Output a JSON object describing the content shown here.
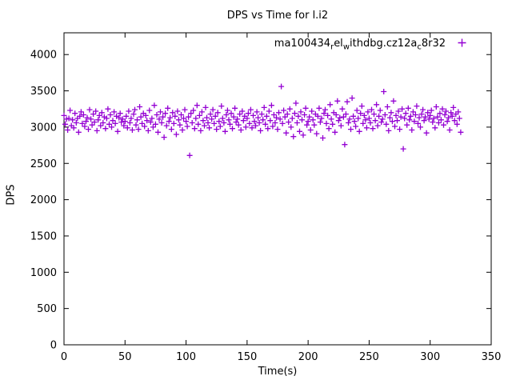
{
  "chart_data": {
    "type": "scatter",
    "title": "DPS vs Time for l.i2",
    "xlabel": "Time(s)",
    "ylabel": "DPS",
    "xlim": [
      0,
      350
    ],
    "ylim": [
      0,
      4300
    ],
    "x_ticks": [
      0,
      50,
      100,
      150,
      200,
      250,
      300,
      350
    ],
    "y_ticks": [
      0,
      500,
      1000,
      1500,
      2000,
      2500,
      3000,
      3500,
      4000
    ],
    "grid": false,
    "legend_position": "top-right-inside",
    "marker": "plus",
    "marker_color": "#9400d3",
    "axis_color": "#000000",
    "series": [
      {
        "name": "ma100434_rel_withdbg.cz12a_c8r32",
        "label_segments": [
          {
            "t": "ma100434"
          },
          {
            "t": "r",
            "sub": true
          },
          {
            "t": "el"
          },
          {
            "t": "w",
            "sub": true
          },
          {
            "t": "ithdbg.cz12a"
          },
          {
            "t": "c",
            "sub": true
          },
          {
            "t": "8r32"
          }
        ],
        "x_start": 0,
        "x_step": 1,
        "values": [
          3160,
          3040,
          3110,
          2960,
          3120,
          3230,
          3020,
          3100,
          2990,
          3190,
          3060,
          3120,
          2930,
          3150,
          3210,
          3050,
          3170,
          3010,
          3080,
          3130,
          2970,
          3240,
          3110,
          3030,
          3180,
          3070,
          3220,
          2950,
          3100,
          3160,
          3020,
          3200,
          3060,
          3140,
          2980,
          3120,
          3250,
          3040,
          3170,
          3000,
          3090,
          3210,
          3050,
          3150,
          2940,
          3130,
          3190,
          3070,
          3110,
          3020,
          3080,
          3150,
          2990,
          3220,
          3060,
          3120,
          2960,
          3180,
          3240,
          3030,
          3100,
          2970,
          3280,
          3140,
          3050,
          3190,
          3010,
          3160,
          3090,
          2950,
          3230,
          3070,
          3120,
          3000,
          3300,
          3040,
          3170,
          2930,
          3110,
          3210,
          3060,
          3140,
          2860,
          3190,
          3020,
          3260,
          3080,
          3130,
          2970,
          3200,
          3050,
          3150,
          2900,
          3220,
          3100,
          3030,
          3170,
          2960,
          3120,
          3240,
          3080,
          3010,
          3140,
          2610,
          3190,
          3060,
          3230,
          2980,
          3120,
          3300,
          3040,
          3160,
          2950,
          3210,
          3090,
          3020,
          3270,
          3130,
          3060,
          2990,
          3180,
          3110,
          3240,
          3050,
          3150,
          2970,
          3200,
          3080,
          3010,
          3290,
          3120,
          3060,
          2940,
          3170,
          3230,
          3100,
          3040,
          3190,
          2980,
          3140,
          3260,
          3070,
          3110,
          3030,
          3180,
          2960,
          3220,
          3090,
          3150,
          3000,
          3120,
          3190,
          3050,
          3240,
          2990,
          3160,
          3080,
          3020,
          3210,
          3130,
          3060,
          2950,
          3180,
          3100,
          3270,
          3040,
          3150,
          2980,
          3220,
          3090,
          3300,
          3010,
          3170,
          3060,
          3130,
          2970,
          3200,
          3110,
          3560,
          3050,
          3230,
          3140,
          2920,
          3180,
          3070,
          3250,
          3000,
          3120,
          2870,
          3190,
          3330,
          3060,
          3150,
          2940,
          3210,
          3100,
          2890,
          3170,
          3260,
          3030,
          3080,
          3140,
          2960,
          3220,
          3100,
          3030,
          3180,
          2910,
          3150,
          3260,
          3070,
          3120,
          2850,
          3190,
          3240,
          3050,
          3160,
          2980,
          3310,
          3110,
          3040,
          3200,
          2930,
          3170,
          3360,
          3090,
          3130,
          3020,
          3250,
          3140,
          2760,
          3180,
          3350,
          3060,
          3110,
          2970,
          3400,
          3150,
          3080,
          3010,
          3230,
          3120,
          2940,
          3190,
          3290,
          3050,
          3160,
          3100,
          2990,
          3210,
          3120,
          3060,
          3240,
          2980,
          3180,
          3090,
          3310,
          3020,
          3150,
          3230,
          3070,
          3110,
          3490,
          3170,
          3040,
          3280,
          2950,
          3130,
          3200,
          3080,
          3360,
          3010,
          3160,
          3090,
          3220,
          2970,
          3140,
          3250,
          2700,
          3120,
          3190,
          3030,
          3260,
          3100,
          3150,
          2960,
          3210,
          3080,
          3170,
          3290,
          3050,
          3130,
          3000,
          3180,
          3240,
          3090,
          3140,
          2920,
          3200,
          3110,
          3160,
          3230,
          3070,
          3120,
          2990,
          3280,
          3140,
          3060,
          3190,
          3100,
          3250,
          3030,
          3170,
          3220,
          3080,
          3130,
          2960,
          3200,
          3150,
          3270,
          3090,
          3180,
          3040,
          3210,
          3120,
          2930
        ]
      }
    ]
  }
}
